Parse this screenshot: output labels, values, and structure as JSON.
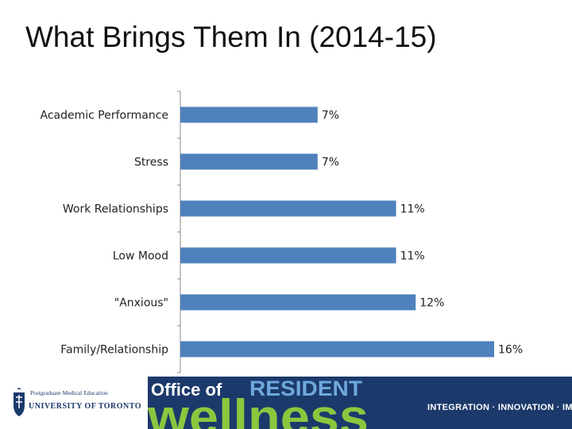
{
  "slide": {
    "title": "What Brings Them In (2014-15)"
  },
  "chart_data": {
    "type": "bar",
    "orientation": "horizontal",
    "categories": [
      "Academic Performance",
      "Stress",
      "Work Relationships",
      "Low Mood",
      "\"Anxious\"",
      "Family/Relationship"
    ],
    "values": [
      7,
      7,
      11,
      11,
      12,
      16
    ],
    "value_labels": [
      "7%",
      "7%",
      "11%",
      "11%",
      "12%",
      "16%"
    ],
    "xlim": [
      0,
      16
    ],
    "grid": false,
    "legend": "none",
    "bar_color": "#4f81bd"
  },
  "footer": {
    "uoft_line1": "Postgraduate Medical Education",
    "uoft_line2": "UNIVERSITY OF TORONTO",
    "logo_office_of": "Office of",
    "logo_resident": "RESIDENT",
    "logo_wellness": "wellness",
    "tagline": "INTEGRATION · INNOVATION · IMPACT",
    "band_color": "#1b3a6b",
    "wellness_color": "#8cc63f"
  }
}
